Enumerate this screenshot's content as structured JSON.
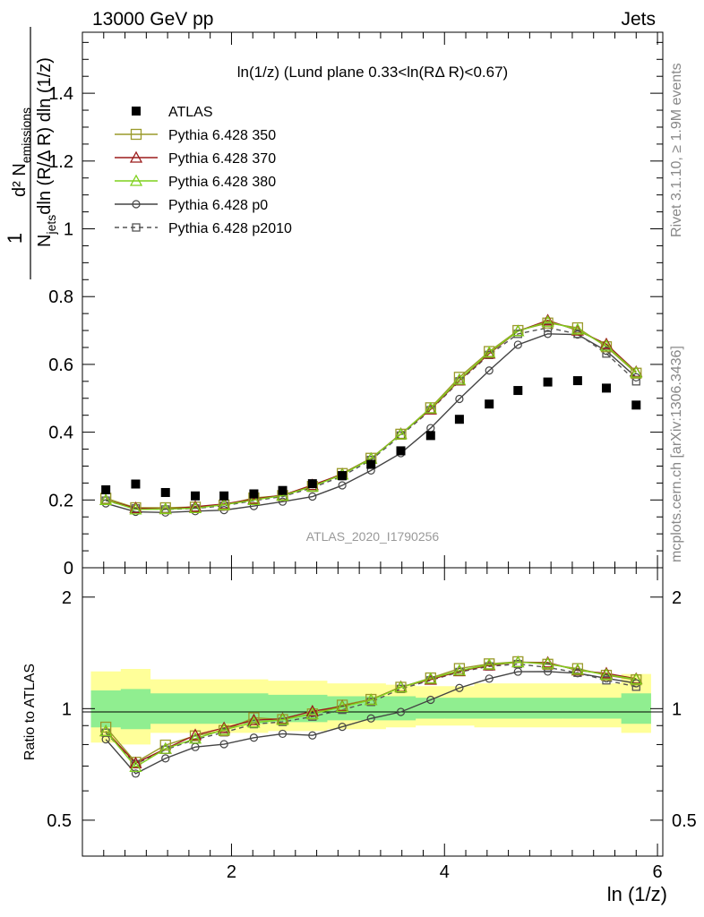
{
  "header": {
    "left": "13000 GeV pp",
    "right": "Jets"
  },
  "plot_title": "ln(1/z) (Lund plane 0.33<ln(RΔ R)<0.67)",
  "side_labels": {
    "rivet": "Rivet 3.1.10, ≥ 1.9M events",
    "mcplots": "mcplots.cern.ch [arXiv:1306.3436]"
  },
  "watermark": "ATLAS_2020_I1790256",
  "axes": {
    "xlabel": "ln (1/z)",
    "ylabel_main": "1/N_jets d² N_emissions / dln (R/Δ R) dln (1/z)",
    "ylabel_main_parts": {
      "one": "1",
      "njets": "N",
      "njets_sub": "jets",
      "dln1": "dln (R/Δ R) dln (1/z)",
      "num": "d² N",
      "num_sub": "emissions"
    },
    "ylabel_ratio": "Ratio to ATLAS",
    "x_ticks": [
      "2",
      "4",
      "6"
    ],
    "y_ticks_main": [
      "0",
      "0.2",
      "0.4",
      "0.6",
      "0.8",
      "1",
      "1.2",
      "1.4"
    ],
    "y_ticks_ratio": [
      "0.5",
      "1",
      "2"
    ]
  },
  "legend": [
    {
      "label": "ATLAS",
      "marker": "filled-square",
      "color": "#000000"
    },
    {
      "label": "Pythia 6.428 350",
      "marker": "open-square",
      "color": "#9a9a2a"
    },
    {
      "label": "Pythia 6.428 370",
      "marker": "open-triangle",
      "color": "#9b1b1b"
    },
    {
      "label": "Pythia 6.428 380",
      "marker": "open-triangle",
      "color": "#7fd11c"
    },
    {
      "label": "Pythia 6.428 p0",
      "marker": "open-circle",
      "color": "#444444"
    },
    {
      "label": "Pythia 6.428 p2010",
      "marker": "open-square-dashed",
      "color": "#555555"
    }
  ],
  "chart_data": {
    "type": "scatter",
    "x": [
      0.82,
      1.1,
      1.38,
      1.66,
      1.93,
      2.21,
      2.48,
      2.76,
      3.04,
      3.31,
      3.59,
      3.87,
      4.14,
      4.42,
      4.69,
      4.97,
      5.25,
      5.52,
      5.8
    ],
    "xlim": [
      0.6,
      6.05
    ],
    "ylim": [
      0,
      1.58
    ],
    "ratio_ylim_log": [
      0.4,
      2.4
    ],
    "series": [
      {
        "name": "ATLAS",
        "values": [
          0.23,
          0.247,
          0.222,
          0.212,
          0.212,
          0.218,
          0.228,
          0.248,
          0.272,
          0.305,
          0.345,
          0.39,
          0.438,
          0.483,
          0.523,
          0.548,
          0.552,
          0.53,
          0.48
        ]
      },
      {
        "name": "Pythia 6.428 350",
        "values": [
          0.205,
          0.177,
          0.177,
          0.179,
          0.185,
          0.206,
          0.213,
          0.24,
          0.278,
          0.323,
          0.394,
          0.472,
          0.562,
          0.638,
          0.7,
          0.722,
          0.708,
          0.652,
          0.574
        ]
      },
      {
        "name": "Pythia 6.428 370",
        "values": [
          0.2,
          0.176,
          0.173,
          0.18,
          0.188,
          0.203,
          0.214,
          0.244,
          0.276,
          0.322,
          0.395,
          0.467,
          0.553,
          0.632,
          0.698,
          0.73,
          0.7,
          0.66,
          0.578
        ]
      },
      {
        "name": "Pythia 6.428 380",
        "values": [
          0.2,
          0.172,
          0.173,
          0.176,
          0.186,
          0.2,
          0.213,
          0.24,
          0.275,
          0.322,
          0.394,
          0.47,
          0.555,
          0.635,
          0.698,
          0.726,
          0.703,
          0.655,
          0.576
        ]
      },
      {
        "name": "Pythia 6.428 p0",
        "values": [
          0.19,
          0.165,
          0.163,
          0.167,
          0.17,
          0.182,
          0.195,
          0.21,
          0.243,
          0.287,
          0.338,
          0.412,
          0.498,
          0.582,
          0.658,
          0.69,
          0.688,
          0.64,
          0.562
        ]
      },
      {
        "name": "Pythia 6.428 p2010",
        "values": [
          0.198,
          0.175,
          0.172,
          0.175,
          0.183,
          0.198,
          0.21,
          0.236,
          0.27,
          0.318,
          0.39,
          0.465,
          0.55,
          0.628,
          0.69,
          0.708,
          0.69,
          0.632,
          0.55
        ]
      }
    ],
    "ratio_bands": {
      "green_lo": [
        0.89,
        0.88,
        0.91,
        0.91,
        0.91,
        0.91,
        0.92,
        0.92,
        0.93,
        0.93,
        0.93,
        0.94,
        0.94,
        0.94,
        0.94,
        0.94,
        0.94,
        0.94,
        0.91
      ],
      "green_hi": [
        1.12,
        1.13,
        1.1,
        1.1,
        1.1,
        1.1,
        1.09,
        1.09,
        1.08,
        1.08,
        1.08,
        1.07,
        1.07,
        1.07,
        1.07,
        1.07,
        1.07,
        1.07,
        1.1
      ],
      "yellow_lo": [
        0.81,
        0.8,
        0.86,
        0.86,
        0.86,
        0.86,
        0.87,
        0.87,
        0.88,
        0.88,
        0.89,
        0.9,
        0.9,
        0.89,
        0.89,
        0.89,
        0.89,
        0.89,
        0.86
      ],
      "yellow_hi": [
        1.26,
        1.28,
        1.2,
        1.2,
        1.2,
        1.2,
        1.19,
        1.19,
        1.17,
        1.17,
        1.16,
        1.15,
        1.15,
        1.17,
        1.17,
        1.17,
        1.17,
        1.17,
        1.24
      ]
    }
  }
}
